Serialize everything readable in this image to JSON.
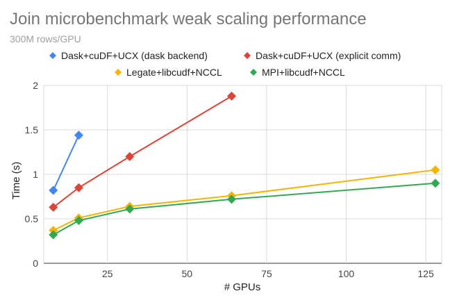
{
  "chart_data": {
    "type": "line",
    "title": "Join microbenchmark weak scaling performance",
    "subtitle": "300M rows/GPU",
    "xlabel": "# GPUs",
    "ylabel": "Time (s)",
    "xlim": [
      5,
      130
    ],
    "ylim": [
      0,
      2
    ],
    "x_ticks": [
      25,
      50,
      75,
      100,
      125
    ],
    "y_ticks": [
      0,
      0.5,
      1,
      1.5,
      2
    ],
    "x_tick_labels": [
      "25",
      "50",
      "75",
      "100",
      "125"
    ],
    "y_tick_labels": [
      "0",
      "0.5",
      "1",
      "1.5",
      "2"
    ],
    "grid": true,
    "legend_position": "top",
    "series": [
      {
        "name": "Dask+cuDF+UCX (dask backend)",
        "color": "#4285F4",
        "x": [
          8,
          16
        ],
        "y": [
          0.82,
          1.44
        ]
      },
      {
        "name": "Dask+cuDF+UCX (explicit comm)",
        "color": "#DB4437",
        "x": [
          8,
          16,
          32,
          64
        ],
        "y": [
          0.63,
          0.85,
          1.2,
          1.88
        ]
      },
      {
        "name": "Legate+libcudf+NCCL",
        "color": "#F4B400",
        "x": [
          8,
          16,
          32,
          64,
          128
        ],
        "y": [
          0.37,
          0.51,
          0.64,
          0.76,
          1.05
        ]
      },
      {
        "name": "MPI+libcudf+NCCL",
        "color": "#33A853",
        "x": [
          8,
          16,
          32,
          64,
          128
        ],
        "y": [
          0.32,
          0.48,
          0.61,
          0.72,
          0.9
        ]
      }
    ]
  }
}
